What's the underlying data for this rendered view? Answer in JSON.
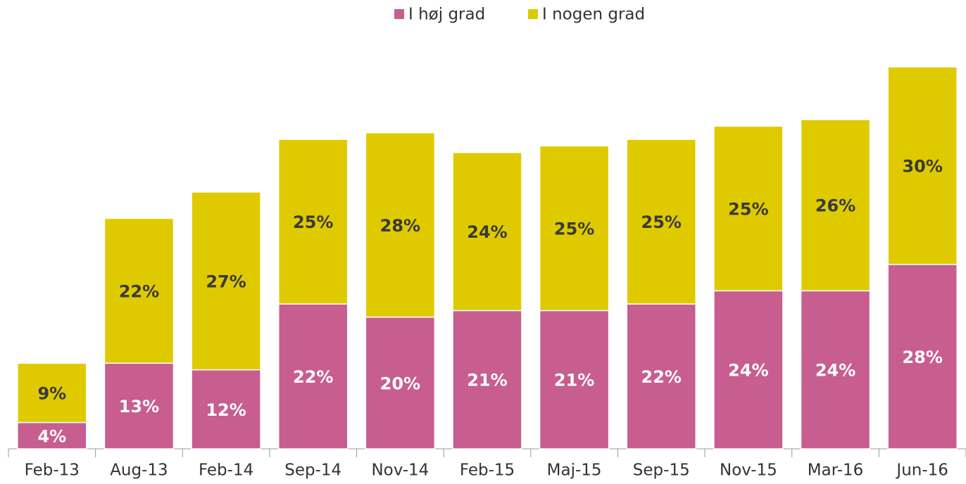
{
  "chart_data": {
    "type": "stacked_bar",
    "categories": [
      "Feb-13",
      "Aug-13",
      "Feb-14",
      "Sep-14",
      "Nov-14",
      "Feb-15",
      "Maj-15",
      "Sep-15",
      "Nov-15",
      "Mar-16",
      "Jun-16"
    ],
    "series": [
      {
        "name": "I høj grad",
        "color": "#c85d8f",
        "values": [
          4,
          13,
          12,
          22,
          20,
          21,
          21,
          22,
          24,
          24,
          28
        ],
        "value_labels": [
          "4%",
          "13%",
          "12%",
          "22%",
          "20%",
          "21%",
          "21%",
          "22%",
          "24%",
          "24%",
          "28%"
        ]
      },
      {
        "name": "I nogen grad",
        "color": "#dfca00",
        "values": [
          9,
          22,
          27,
          25,
          28,
          24,
          25,
          25,
          25,
          26,
          30
        ],
        "value_labels": [
          "9%",
          "22%",
          "27%",
          "25%",
          "28%",
          "24%",
          "25%",
          "25%",
          "25%",
          "26%",
          "30%"
        ]
      }
    ]
  }
}
